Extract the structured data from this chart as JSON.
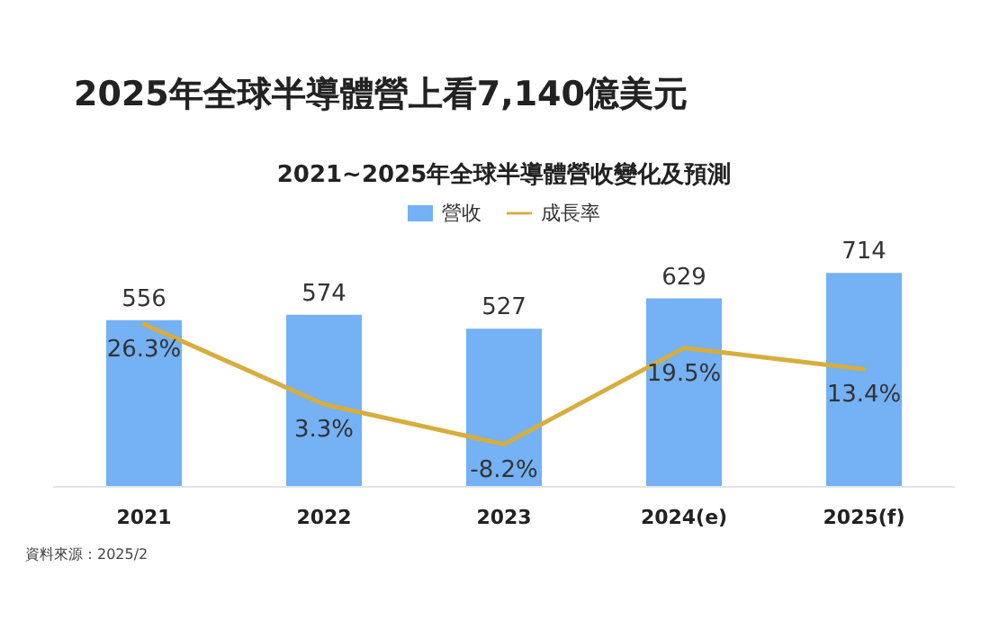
{
  "chart_data": {
    "type": "bar",
    "title": "2025年全球半導體營上看7,140億美元",
    "subtitle": "2021~2025年全球半導體營收變化及預測",
    "categories": [
      "2021",
      "2022",
      "2023",
      "2024(e)",
      "2025(f)"
    ],
    "series": [
      {
        "name": "營收",
        "color": "#74b1f5",
        "values": [
          556,
          574,
          527,
          629,
          714
        ]
      },
      {
        "name": "成長率",
        "type": "line",
        "axis": "y2",
        "color": "#d6ae3e",
        "values": [
          26.3,
          3.3,
          -8.2,
          19.5,
          13.4
        ],
        "value_labels": [
          "26.3%",
          "3.3%",
          "-8.2%",
          "19.5%",
          "13.4%"
        ]
      }
    ],
    "data_labels": true,
    "legend": "top",
    "grid": false,
    "marker": "none",
    "line_style": "solid",
    "annotations": [
      "資料來源：2025/2"
    ]
  }
}
